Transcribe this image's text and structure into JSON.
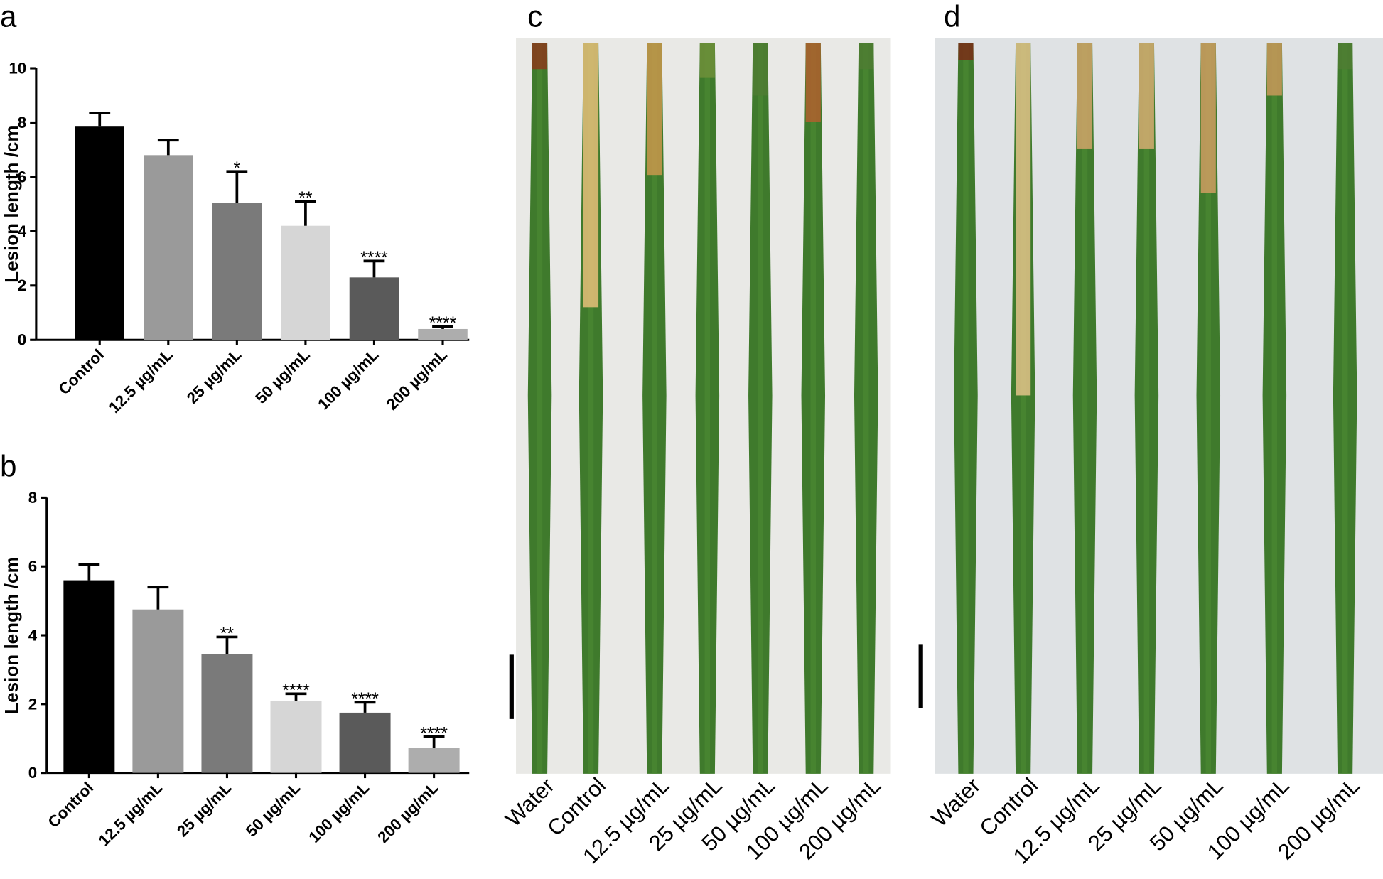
{
  "chart_data": [
    {
      "type": "bar",
      "panel_label": "a",
      "ylabel": "Lesion length /cm",
      "categories": [
        "Control",
        "12.5 µg/mL",
        "25 µg/mL",
        "50 µg/mL",
        "100 µg/mL",
        "200 µg/mL"
      ],
      "values": [
        7.85,
        6.8,
        5.05,
        4.2,
        2.3,
        0.4
      ],
      "errors": [
        0.5,
        0.55,
        1.15,
        0.9,
        0.6,
        0.1
      ],
      "significance": [
        null,
        null,
        "*",
        "**",
        "****",
        "****"
      ],
      "colors": [
        "#000000",
        "#9a9a9a",
        "#7a7a7a",
        "#d6d6d6",
        "#5a5a5a",
        "#adadad"
      ],
      "ylim": [
        0,
        10
      ],
      "yticks": [
        0,
        2,
        4,
        6,
        8,
        10
      ]
    },
    {
      "type": "bar",
      "panel_label": "b",
      "ylabel": "Lesion length /cm",
      "categories": [
        "Control",
        "12.5 µg/mL",
        "25 µg/mL",
        "50 µg/mL",
        "100 µg/mL",
        "200 µg/mL"
      ],
      "values": [
        5.6,
        4.75,
        3.45,
        2.1,
        1.75,
        0.72
      ],
      "errors": [
        0.45,
        0.65,
        0.5,
        0.2,
        0.3,
        0.33
      ],
      "significance": [
        null,
        null,
        "**",
        "****",
        "****",
        "****"
      ],
      "colors": [
        "#000000",
        "#9a9a9a",
        "#7a7a7a",
        "#d6d6d6",
        "#5a5a5a",
        "#adadad"
      ],
      "ylim": [
        0,
        8
      ],
      "yticks": [
        0,
        2,
        4,
        6,
        8
      ]
    }
  ],
  "photos": [
    {
      "panel_label": "c",
      "labels": [
        "Water",
        "Control",
        "12.5 µg/mL",
        "25 µg/mL",
        "50 µg/mL",
        "100 µg/mL",
        "200 µg/mL"
      ]
    },
    {
      "panel_label": "d",
      "labels": [
        "Water",
        "Control",
        "12.5 µg/mL",
        "25 µg/mL",
        "50 µg/mL",
        "100 µg/mL",
        "200 µg/mL"
      ]
    }
  ]
}
